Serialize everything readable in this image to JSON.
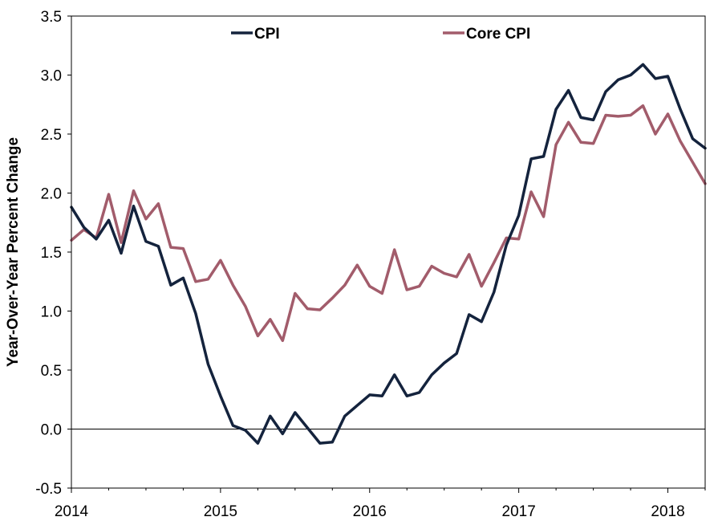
{
  "chart_data": {
    "type": "line",
    "title": "",
    "xlabel": "",
    "ylabel": "Year-Over-Year  Percent Change",
    "ylim": [
      -0.5,
      3.5
    ],
    "yticks": [
      "-0.5",
      "0.0",
      "0.5",
      "1.0",
      "1.5",
      "2.0",
      "2.5",
      "3.0",
      "3.5"
    ],
    "xticks": [
      "2014",
      "2015",
      "2016",
      "2017",
      "2018"
    ],
    "start": "2014-01",
    "legend_position": "top-center",
    "grid": false,
    "series": [
      {
        "name": "CPI",
        "color": "#14233d",
        "values": [
          1.88,
          1.71,
          1.61,
          1.77,
          1.49,
          1.89,
          1.59,
          1.55,
          1.22,
          1.28,
          0.98,
          0.55,
          0.28,
          0.03,
          -0.01,
          -0.12,
          0.11,
          -0.04,
          0.14,
          0.01,
          -0.12,
          -0.11,
          0.11,
          0.2,
          0.29,
          0.28,
          0.46,
          0.28,
          0.31,
          0.46,
          0.56,
          0.64,
          0.97,
          0.91,
          1.16,
          1.56,
          1.81,
          2.29,
          2.31,
          2.71,
          2.87,
          2.64,
          2.62,
          2.86,
          2.96,
          3.0,
          3.09,
          2.97,
          2.99,
          2.71,
          2.46,
          2.38
        ]
      },
      {
        "name": "Core CPI",
        "color": "#a25c6b",
        "values": [
          1.6,
          1.69,
          1.62,
          1.99,
          1.58,
          2.02,
          1.78,
          1.91,
          1.54,
          1.53,
          1.25,
          1.27,
          1.43,
          1.22,
          1.04,
          0.79,
          0.93,
          0.75,
          1.15,
          1.02,
          1.01,
          1.11,
          1.22,
          1.39,
          1.21,
          1.15,
          1.52,
          1.18,
          1.21,
          1.38,
          1.32,
          1.29,
          1.48,
          1.21,
          1.41,
          1.62,
          1.61,
          2.01,
          1.8,
          2.41,
          2.6,
          2.43,
          2.42,
          2.66,
          2.65,
          2.66,
          2.74,
          2.5,
          2.67,
          2.44,
          2.26,
          2.08
        ]
      }
    ]
  }
}
